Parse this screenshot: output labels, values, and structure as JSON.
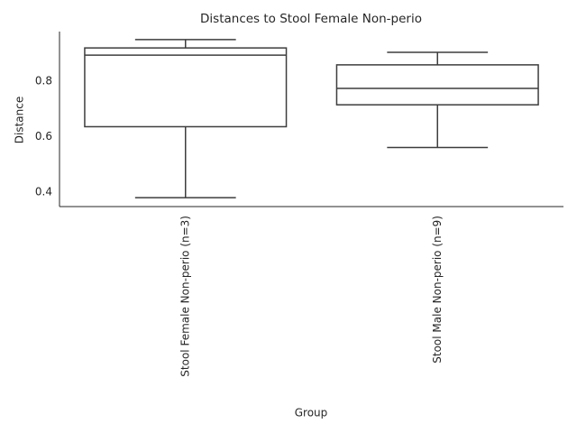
{
  "chart_data": {
    "type": "box",
    "title": "Distances to Stool Female Non-perio",
    "x_label": "Group",
    "y_label": "Distance",
    "categories": [
      "Stool Female Non-perio (n=3)",
      "Stool Male Non-perio (n=9)"
    ],
    "min": [
      0.38,
      0.561
    ],
    "q1": [
      0.636,
      0.715
    ],
    "median": [
      0.894,
      0.774
    ],
    "q3": [
      0.92,
      0.859
    ],
    "max": [
      0.95,
      0.904
    ],
    "color": "#3d3d3d",
    "ylim": [
      0.348,
      0.979
    ],
    "yticks": [
      0.4,
      0.6,
      0.8
    ],
    "grid": false
  }
}
